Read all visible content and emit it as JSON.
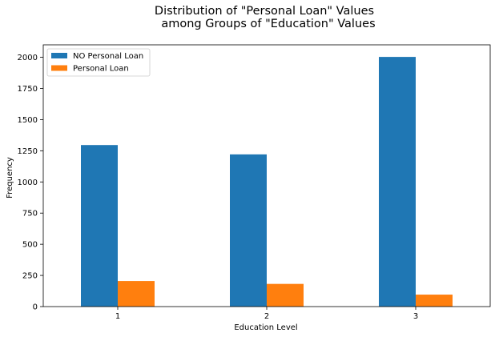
{
  "chart_data": {
    "type": "bar",
    "title_lines": [
      "Distribution of \"Personal Loan\" Values",
      "among Groups of \"Education\" Values"
    ],
    "xlabel": "Education Level",
    "ylabel": "Frequency",
    "categories": [
      "1",
      "2",
      "3"
    ],
    "series": [
      {
        "name": "NO Personal Loan",
        "color": "#1f77b4",
        "values": [
          1296,
          1221,
          2003
        ]
      },
      {
        "name": "Personal Loan",
        "color": "#ff7f0e",
        "values": [
          205,
          182,
          96
        ]
      }
    ],
    "ylim": [
      0,
      2100
    ],
    "yticks": [
      0,
      250,
      500,
      750,
      1000,
      1250,
      1500,
      1750,
      2000
    ],
    "legend_position": "top-left",
    "grid": false
  }
}
